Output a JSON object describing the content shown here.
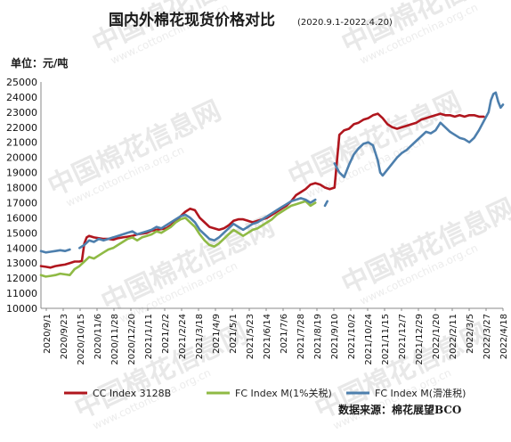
{
  "chart_data": {
    "type": "line",
    "title": "国内外棉花现货价格对比",
    "subtitle": "(2020.9.1-2022.4.20)",
    "ylabel": "单位：元/吨",
    "xlabel": "",
    "ylim": [
      10000,
      25000
    ],
    "y_ticks": [
      "10000",
      "11000",
      "12000",
      "13000",
      "14000",
      "15000",
      "16000",
      "17000",
      "18000",
      "19000",
      "20000",
      "21000",
      "22000",
      "23000",
      "24000",
      "25000"
    ],
    "x_ticks": [
      "2020/9/1",
      "2020/9/23",
      "2020/10/15",
      "2020/11/6",
      "2020/11/28",
      "2020/12/20",
      "2021/1/11",
      "2021/2/2",
      "2021/2/24",
      "2021/3/18",
      "2021/4/9",
      "2021/5/1",
      "2021/5/23",
      "2021/6/14",
      "2021/7/6",
      "2021/7/28",
      "2021/8/19",
      "2021/9/10",
      "2021/10/2",
      "2021/10/24",
      "2021/11/15",
      "2021/12/7",
      "2021/12/29",
      "2022/1/20",
      "2022/2/11",
      "2022/3/5",
      "2022/3/27",
      "2022/4/18"
    ],
    "grid": false,
    "legend_position": "bottom",
    "series": [
      {
        "name": "CC Index 3128B",
        "color": "#b0161e",
        "points": [
          [
            0,
            12800
          ],
          [
            2,
            12750
          ],
          [
            4,
            12700
          ],
          [
            6,
            12800
          ],
          [
            8,
            12850
          ],
          [
            10,
            12900
          ],
          [
            12,
            13000
          ],
          [
            14,
            13100
          ],
          [
            16,
            13100
          ],
          [
            17,
            13150
          ],
          [
            18,
            14300
          ],
          [
            19,
            14700
          ],
          [
            20,
            14800
          ],
          [
            22,
            14700
          ],
          [
            24,
            14650
          ],
          [
            26,
            14600
          ],
          [
            28,
            14600
          ],
          [
            30,
            14550
          ],
          [
            32,
            14650
          ],
          [
            34,
            14700
          ],
          [
            36,
            14750
          ],
          [
            38,
            14800
          ],
          [
            40,
            14900
          ],
          [
            42,
            14950
          ],
          [
            44,
            15000
          ],
          [
            46,
            15150
          ],
          [
            48,
            15200
          ],
          [
            50,
            15250
          ],
          [
            52,
            15300
          ],
          [
            54,
            15500
          ],
          [
            56,
            15800
          ],
          [
            58,
            16100
          ],
          [
            60,
            16400
          ],
          [
            62,
            16600
          ],
          [
            64,
            16500
          ],
          [
            66,
            16000
          ],
          [
            68,
            15700
          ],
          [
            70,
            15400
          ],
          [
            72,
            15300
          ],
          [
            74,
            15200
          ],
          [
            76,
            15300
          ],
          [
            78,
            15500
          ],
          [
            80,
            15800
          ],
          [
            82,
            15900
          ],
          [
            84,
            15900
          ],
          [
            86,
            15800
          ],
          [
            88,
            15700
          ],
          [
            90,
            15800
          ],
          [
            92,
            15900
          ],
          [
            94,
            16000
          ],
          [
            96,
            16200
          ],
          [
            98,
            16400
          ],
          [
            100,
            16600
          ],
          [
            102,
            16800
          ],
          [
            104,
            17100
          ],
          [
            106,
            17500
          ],
          [
            108,
            17700
          ],
          [
            110,
            17900
          ],
          [
            112,
            18200
          ],
          [
            114,
            18300
          ],
          [
            116,
            18200
          ],
          [
            118,
            18000
          ],
          [
            120,
            17900
          ],
          [
            122,
            18000
          ],
          [
            124,
            21500
          ],
          [
            126,
            21800
          ],
          [
            128,
            21900
          ],
          [
            130,
            22200
          ],
          [
            132,
            22300
          ],
          [
            134,
            22500
          ],
          [
            136,
            22600
          ],
          [
            138,
            22800
          ],
          [
            140,
            22900
          ],
          [
            142,
            22600
          ],
          [
            144,
            22200
          ],
          [
            146,
            22000
          ],
          [
            148,
            21900
          ],
          [
            150,
            22000
          ],
          [
            152,
            22100
          ],
          [
            154,
            22200
          ],
          [
            156,
            22300
          ],
          [
            158,
            22500
          ],
          [
            160,
            22600
          ],
          [
            162,
            22700
          ],
          [
            164,
            22800
          ],
          [
            166,
            22900
          ],
          [
            168,
            22800
          ],
          [
            170,
            22800
          ],
          [
            172,
            22700
          ],
          [
            174,
            22800
          ],
          [
            176,
            22700
          ],
          [
            178,
            22800
          ],
          [
            180,
            22800
          ],
          [
            182,
            22700
          ],
          [
            184,
            22700
          ]
        ]
      },
      {
        "name": "FC Index M(1%关税)",
        "color": "#8fba45",
        "points": [
          [
            0,
            12200
          ],
          [
            2,
            12100
          ],
          [
            4,
            12150
          ],
          [
            6,
            12200
          ],
          [
            8,
            12300
          ],
          [
            10,
            12250
          ],
          [
            12,
            12200
          ],
          [
            14,
            12600
          ],
          [
            16,
            12800
          ],
          [
            18,
            13100
          ],
          [
            20,
            13400
          ],
          [
            22,
            13300
          ],
          [
            24,
            13500
          ],
          [
            26,
            13700
          ],
          [
            28,
            13900
          ],
          [
            30,
            14000
          ],
          [
            32,
            14200
          ],
          [
            34,
            14400
          ],
          [
            36,
            14600
          ],
          [
            38,
            14700
          ],
          [
            40,
            14500
          ],
          [
            42,
            14700
          ],
          [
            44,
            14800
          ],
          [
            46,
            14900
          ],
          [
            48,
            15100
          ],
          [
            50,
            15000
          ],
          [
            52,
            15200
          ],
          [
            54,
            15400
          ],
          [
            56,
            15700
          ],
          [
            58,
            15900
          ],
          [
            60,
            16000
          ],
          [
            62,
            15700
          ],
          [
            64,
            15400
          ],
          [
            66,
            14900
          ],
          [
            68,
            14500
          ],
          [
            70,
            14200
          ],
          [
            72,
            14100
          ],
          [
            74,
            14300
          ],
          [
            76,
            14600
          ],
          [
            78,
            14900
          ],
          [
            80,
            15200
          ],
          [
            82,
            15000
          ],
          [
            84,
            14800
          ],
          [
            86,
            15000
          ],
          [
            88,
            15200
          ],
          [
            90,
            15300
          ],
          [
            92,
            15500
          ],
          [
            94,
            15700
          ],
          [
            96,
            15900
          ],
          [
            98,
            16200
          ],
          [
            100,
            16400
          ],
          [
            102,
            16600
          ],
          [
            104,
            16800
          ],
          [
            106,
            16900
          ],
          [
            108,
            17000
          ],
          [
            110,
            17100
          ],
          [
            112,
            16800
          ],
          [
            114,
            17000
          ]
        ]
      },
      {
        "name": "FC Index M(滑准税)",
        "color": "#4d7fad",
        "points": [
          [
            0,
            13800
          ],
          [
            2,
            13700
          ],
          [
            4,
            13750
          ],
          [
            6,
            13800
          ],
          [
            8,
            13850
          ],
          [
            10,
            13800
          ],
          [
            12,
            13900
          ],
          [
            16,
            14000
          ],
          [
            18,
            14200
          ],
          [
            20,
            14500
          ],
          [
            22,
            14400
          ],
          [
            24,
            14600
          ],
          [
            26,
            14500
          ],
          [
            28,
            14600
          ],
          [
            30,
            14700
          ],
          [
            32,
            14800
          ],
          [
            34,
            14900
          ],
          [
            36,
            15000
          ],
          [
            38,
            15100
          ],
          [
            40,
            14900
          ],
          [
            42,
            15000
          ],
          [
            44,
            15100
          ],
          [
            46,
            15200
          ],
          [
            48,
            15400
          ],
          [
            50,
            15300
          ],
          [
            52,
            15500
          ],
          [
            54,
            15700
          ],
          [
            56,
            15900
          ],
          [
            58,
            16100
          ],
          [
            60,
            16200
          ],
          [
            62,
            16000
          ],
          [
            64,
            15700
          ],
          [
            66,
            15200
          ],
          [
            68,
            14900
          ],
          [
            70,
            14600
          ],
          [
            72,
            14500
          ],
          [
            74,
            14700
          ],
          [
            76,
            15000
          ],
          [
            78,
            15300
          ],
          [
            80,
            15600
          ],
          [
            82,
            15400
          ],
          [
            84,
            15200
          ],
          [
            86,
            15400
          ],
          [
            88,
            15600
          ],
          [
            90,
            15700
          ],
          [
            92,
            15900
          ],
          [
            94,
            16100
          ],
          [
            96,
            16300
          ],
          [
            98,
            16500
          ],
          [
            100,
            16700
          ],
          [
            102,
            16900
          ],
          [
            104,
            17100
          ],
          [
            106,
            17200
          ],
          [
            108,
            17300
          ],
          [
            110,
            17200
          ],
          [
            112,
            17000
          ],
          [
            114,
            17200
          ],
          [
            118,
            16800
          ],
          [
            119,
            17100
          ],
          [
            122,
            19600
          ],
          [
            123,
            19300
          ],
          [
            124,
            19000
          ],
          [
            126,
            18700
          ],
          [
            128,
            19500
          ],
          [
            130,
            20200
          ],
          [
            132,
            20600
          ],
          [
            134,
            20900
          ],
          [
            136,
            21000
          ],
          [
            138,
            20800
          ],
          [
            140,
            19800
          ],
          [
            141,
            19000
          ],
          [
            142,
            18800
          ],
          [
            144,
            19200
          ],
          [
            146,
            19600
          ],
          [
            148,
            20000
          ],
          [
            150,
            20300
          ],
          [
            152,
            20500
          ],
          [
            154,
            20800
          ],
          [
            156,
            21100
          ],
          [
            158,
            21400
          ],
          [
            160,
            21700
          ],
          [
            162,
            21600
          ],
          [
            164,
            21800
          ],
          [
            166,
            22300
          ],
          [
            168,
            22000
          ],
          [
            170,
            21700
          ],
          [
            172,
            21500
          ],
          [
            174,
            21300
          ],
          [
            176,
            21200
          ],
          [
            178,
            21000
          ],
          [
            180,
            21300
          ],
          [
            182,
            21800
          ],
          [
            184,
            22400
          ],
          [
            186,
            23000
          ],
          [
            187,
            23800
          ],
          [
            188,
            24200
          ],
          [
            189,
            24300
          ],
          [
            190,
            23700
          ],
          [
            191,
            23300
          ],
          [
            192,
            23500
          ]
        ]
      }
    ]
  },
  "source": "数据来源：棉花展望BCO",
  "watermark": {
    "brand": "中国棉花信息网",
    "url": "www.cottonchina.org.cn"
  }
}
